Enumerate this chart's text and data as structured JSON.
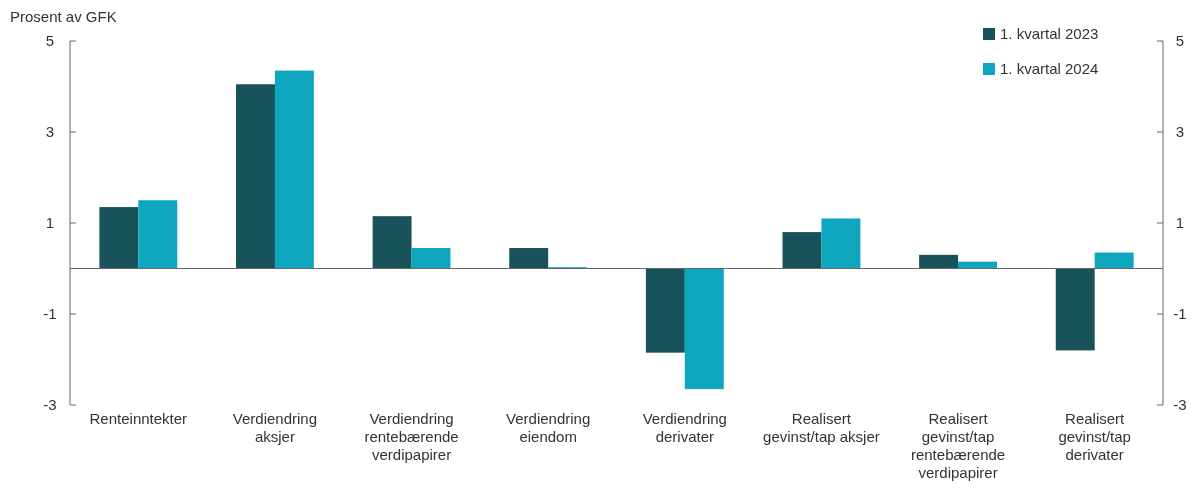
{
  "chart_data": {
    "type": "bar",
    "ylabel": "Prosent av GFK",
    "categories": [
      "Renteinntekter",
      "Verdiendring aksjer",
      "Verdiendring rentebærende verdipapirer",
      "Verdiendring eiendom",
      "Verdiendring derivater",
      "Realisert gevinst/tap aksjer",
      "Realisert gevinst/tap rentebærende verdipapirer",
      "Realisert gevinst/tap derivater"
    ],
    "series": [
      {
        "name": "1. kvartal 2023",
        "color": "#18535b",
        "values": [
          1.35,
          4.05,
          1.15,
          0.45,
          -1.85,
          0.8,
          0.3,
          -1.8
        ]
      },
      {
        "name": "1. kvartal 2024",
        "color": "#0ea5be",
        "values": [
          1.5,
          4.35,
          0.45,
          0.03,
          -2.65,
          1.1,
          0.15,
          0.35
        ]
      }
    ],
    "ylim": [
      -3,
      5
    ],
    "yticks": [
      -3,
      -1,
      1,
      3,
      5
    ],
    "y2lim": [
      -3,
      5
    ],
    "y2ticks": [
      -3,
      -1,
      1,
      3,
      5
    ],
    "legend": "top right"
  }
}
